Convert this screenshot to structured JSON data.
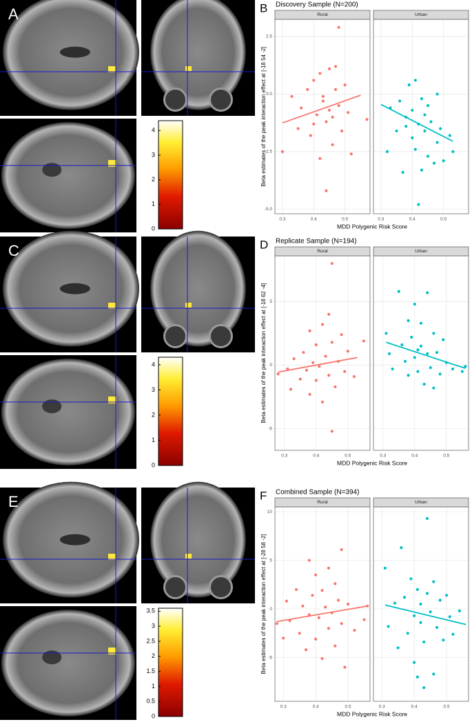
{
  "chart_data": [
    {
      "type": "colorbar",
      "label": "A",
      "ylim": [
        0,
        4.4
      ],
      "yticks": [
        0,
        1,
        2,
        3,
        4
      ]
    },
    {
      "type": "scatter",
      "label": "B",
      "title": "Discovery Sample (N=200)",
      "ylabel": "Beta estimates of the peak interaction effect at [-18 54 -2]",
      "xlabel": "MDD Polygenic Risk Score",
      "xlim": [
        0.276,
        0.58
      ],
      "xticks": [
        0.3,
        0.4,
        0.5
      ],
      "ylim": [
        -5.2,
        3.25
      ],
      "yticks": [
        {
          "value": -5,
          "label": "-5.0"
        },
        -2.5,
        {
          "value": 0,
          "label": "0.0"
        },
        2.5
      ],
      "grid": true,
      "series": [
        {
          "name": "Rural",
          "color": "#f8766d",
          "x": [
            0.3,
            0.33,
            0.35,
            0.36,
            0.38,
            0.39,
            0.4,
            0.41,
            0.42,
            0.42,
            0.43,
            0.44,
            0.44,
            0.45,
            0.45,
            0.46,
            0.47,
            0.47,
            0.48,
            0.48,
            0.49,
            0.5,
            0.51,
            0.52,
            0.57,
            0.4,
            0.43,
            0.46
          ],
          "values": [
            -2.5,
            -0.1,
            -1.5,
            -0.6,
            0.2,
            -1.8,
            0.6,
            -0.9,
            -2.8,
            0.9,
            -0.3,
            -1.2,
            -4.2,
            1.1,
            -0.7,
            -2.2,
            0.2,
            1.2,
            -0.5,
            2.9,
            -1.6,
            0.4,
            -0.8,
            -2.6,
            -1.1,
            -1.3,
            -0.1,
            -1.0
          ],
          "fit": {
            "x": [
              0.3,
              0.55
            ],
            "values": [
              -1.25,
              -0.05
            ]
          }
        },
        {
          "name": "Urban",
          "color": "#00bfc4",
          "x": [
            0.32,
            0.33,
            0.35,
            0.36,
            0.37,
            0.38,
            0.39,
            0.4,
            0.4,
            0.41,
            0.41,
            0.42,
            0.42,
            0.43,
            0.43,
            0.44,
            0.44,
            0.45,
            0.46,
            0.47,
            0.48,
            0.48,
            0.49,
            0.5,
            0.52,
            0.53,
            0.38,
            0.45
          ],
          "values": [
            -2.5,
            -0.6,
            -1.6,
            -0.3,
            -3.4,
            -1.0,
            0.4,
            -1.9,
            -0.7,
            0.6,
            -2.4,
            -1.3,
            -4.8,
            -0.2,
            -3.3,
            -1.6,
            -0.9,
            -2.7,
            -1.2,
            -3.0,
            0.0,
            -2.1,
            -1.5,
            -2.9,
            -1.8,
            -2.5,
            -1.4,
            -0.5
          ],
          "fit": {
            "x": [
              0.3,
              0.53
            ],
            "values": [
              -0.45,
              -2.05
            ]
          }
        }
      ]
    },
    {
      "type": "colorbar",
      "label": "C",
      "ylim": [
        0,
        4.3
      ],
      "yticks": [
        0,
        1,
        2,
        3,
        4
      ]
    },
    {
      "type": "scatter",
      "label": "D",
      "title": "Replicate Sample (N=194)",
      "ylabel": "Beta estimates of the peak interaction effect at [-18 62 -4]",
      "xlabel": "MDD Polygenic Risk Score",
      "xlim": [
        0.27,
        0.57
      ],
      "xticks": [
        0.3,
        0.4,
        0.5
      ],
      "ylim": [
        -6.7,
        8.6
      ],
      "yticks": [
        -5,
        0,
        5
      ],
      "grid": true,
      "series": [
        {
          "name": "Rural",
          "color": "#f8766d",
          "x": [
            0.28,
            0.31,
            0.32,
            0.33,
            0.35,
            0.36,
            0.37,
            0.38,
            0.38,
            0.39,
            0.4,
            0.4,
            0.41,
            0.42,
            0.42,
            0.43,
            0.44,
            0.45,
            0.45,
            0.45,
            0.46,
            0.47,
            0.48,
            0.49,
            0.5,
            0.52,
            0.55,
            0.44
          ],
          "values": [
            -0.7,
            -0.3,
            -1.9,
            0.5,
            -1.1,
            1.0,
            -0.4,
            2.7,
            -2.3,
            0.2,
            1.6,
            -1.2,
            -0.1,
            3.2,
            -2.9,
            0.7,
            -0.8,
            8.0,
            -5.2,
            1.8,
            -1.7,
            0.3,
            2.4,
            -0.5,
            1.1,
            -0.9,
            1.9,
            4.0
          ],
          "fit": {
            "x": [
              0.28,
              0.53
            ],
            "values": [
              -0.55,
              0.6
            ]
          }
        },
        {
          "name": "Urban",
          "color": "#00bfc4",
          "x": [
            0.31,
            0.32,
            0.33,
            0.35,
            0.36,
            0.37,
            0.38,
            0.38,
            0.39,
            0.4,
            0.4,
            0.41,
            0.42,
            0.42,
            0.43,
            0.44,
            0.44,
            0.45,
            0.46,
            0.46,
            0.47,
            0.48,
            0.49,
            0.5,
            0.52,
            0.55,
            0.56,
            0.41
          ],
          "values": [
            2.5,
            0.9,
            -0.3,
            5.8,
            1.6,
            0.3,
            3.5,
            -0.8,
            2.2,
            4.8,
            0.6,
            -0.5,
            1.5,
            3.3,
            -1.5,
            5.7,
            0.9,
            -0.2,
            2.5,
            -1.8,
            1.0,
            -0.7,
            2.0,
            0.2,
            -0.3,
            -0.5,
            -0.1,
            1.2
          ],
          "fit": {
            "x": [
              0.31,
              0.56
            ],
            "values": [
              1.8,
              -0.25
            ]
          }
        }
      ]
    },
    {
      "type": "colorbar",
      "label": "E",
      "ylim": [
        0,
        3.6
      ],
      "yticks": [
        0,
        0.5,
        1,
        1.5,
        2,
        2.5,
        3,
        3.5
      ]
    },
    {
      "type": "scatter",
      "label": "F",
      "title": "Combined Sample (N=394)",
      "ylabel": "Beta estimates of the peak interaction effect at [-28 58 -2]",
      "xlabel": "MDD Polygenic Risk Score",
      "xlim": [
        0.274,
        0.568
      ],
      "xticks": [
        0.3,
        0.4,
        0.5
      ],
      "ylim": [
        -9.5,
        10.5
      ],
      "yticks": [
        -5,
        0,
        5,
        10
      ],
      "grid": true,
      "series": [
        {
          "name": "Rural",
          "color": "#f8766d",
          "x": [
            0.28,
            0.3,
            0.31,
            0.32,
            0.34,
            0.35,
            0.36,
            0.37,
            0.38,
            0.38,
            0.39,
            0.4,
            0.4,
            0.41,
            0.42,
            0.42,
            0.43,
            0.44,
            0.44,
            0.45,
            0.46,
            0.46,
            0.47,
            0.48,
            0.48,
            0.49,
            0.5,
            0.52,
            0.55,
            0.56
          ],
          "values": [
            -1.5,
            -3.0,
            0.8,
            -1.2,
            2.0,
            -2.5,
            0.3,
            -4.2,
            5.0,
            -0.6,
            1.4,
            -3.1,
            3.5,
            -0.9,
            -5.1,
            1.9,
            0.2,
            -2.0,
            4.2,
            -0.4,
            2.6,
            -3.8,
            0.9,
            6.1,
            -1.5,
            -6.0,
            0.5,
            -2.2,
            -1.1,
            0.3
          ],
          "fit": {
            "x": [
              0.28,
              0.56
            ],
            "values": [
              -1.3,
              0.3
            ]
          }
        },
        {
          "name": "Urban",
          "color": "#00bfc4",
          "x": [
            0.31,
            0.32,
            0.34,
            0.35,
            0.36,
            0.37,
            0.38,
            0.39,
            0.4,
            0.4,
            0.41,
            0.42,
            0.42,
            0.43,
            0.43,
            0.44,
            0.44,
            0.45,
            0.46,
            0.46,
            0.47,
            0.48,
            0.49,
            0.5,
            0.51,
            0.52,
            0.54,
            0.41
          ],
          "values": [
            4.2,
            -1.8,
            0.6,
            -4.0,
            6.3,
            1.2,
            -2.5,
            3.1,
            -0.7,
            -5.5,
            2.0,
            -1.4,
            0.5,
            -3.4,
            -8.1,
            9.3,
            1.6,
            -0.3,
            -6.7,
            2.8,
            -1.9,
            0.9,
            -3.2,
            1.4,
            -0.8,
            -2.6,
            -0.2,
            -7.0
          ],
          "fit": {
            "x": [
              0.31,
              0.56
            ],
            "values": [
              0.4,
              -1.6
            ]
          }
        }
      ]
    }
  ]
}
